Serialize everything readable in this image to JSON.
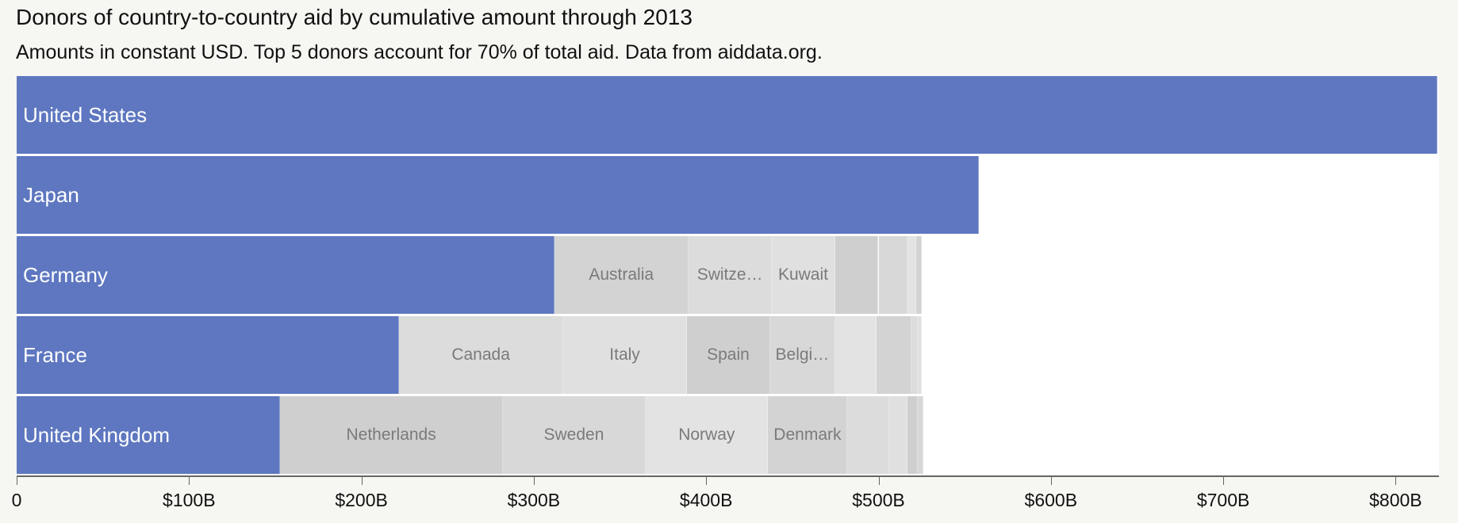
{
  "chart_data": {
    "type": "bar",
    "stacked": true,
    "orientation": "horizontal",
    "title": "Donors of country-to-country aid by cumulative amount through 2013",
    "subtitle": "Amounts in constant USD. Top 5 donors account for 70% of total aid. Data from aiddata.org.",
    "xlim": [
      0,
      825
    ],
    "x_unit": "billion USD",
    "ticks": [
      0,
      100,
      200,
      300,
      400,
      500,
      600,
      700,
      800
    ],
    "tick_labels": [
      "0",
      "$100B",
      "$200B",
      "$300B",
      "$400B",
      "$500B",
      "$600B",
      "$700B",
      "$800B"
    ],
    "main_color": "#5e77c0",
    "other_colors": [
      "#d3d3d3",
      "#dcdcdc",
      "#e0e0e0",
      "#cfcfcf",
      "#d8d8d8",
      "#e3e3e3"
    ],
    "rows": [
      {
        "name": "United States",
        "value": 824,
        "others": []
      },
      {
        "name": "Japan",
        "value": 558,
        "others": []
      },
      {
        "name": "Germany",
        "value": 312,
        "others": [
          {
            "name": "Australia",
            "value": 78
          },
          {
            "name": "Switze…",
            "value": 48
          },
          {
            "name": "Kuwait",
            "value": 37
          },
          {
            "name": "",
            "value": 25
          },
          {
            "name": "",
            "value": 17
          },
          {
            "name": "",
            "value": 5
          },
          {
            "name": "",
            "value": 3
          }
        ]
      },
      {
        "name": "France",
        "value": 222,
        "others": [
          {
            "name": "Canada",
            "value": 95
          },
          {
            "name": "Italy",
            "value": 72
          },
          {
            "name": "Spain",
            "value": 48
          },
          {
            "name": "Belgi…",
            "value": 38
          },
          {
            "name": "",
            "value": 24
          },
          {
            "name": "",
            "value": 20
          },
          {
            "name": "",
            "value": 4
          },
          {
            "name": "",
            "value": 2
          }
        ]
      },
      {
        "name": "United Kingdom",
        "value": 153,
        "others": [
          {
            "name": "Netherlands",
            "value": 129
          },
          {
            "name": "Sweden",
            "value": 83
          },
          {
            "name": "Norway",
            "value": 71
          },
          {
            "name": "Denmark",
            "value": 46
          },
          {
            "name": "",
            "value": 24
          },
          {
            "name": "",
            "value": 11
          },
          {
            "name": "",
            "value": 6
          },
          {
            "name": "",
            "value": 3
          }
        ]
      }
    ]
  }
}
